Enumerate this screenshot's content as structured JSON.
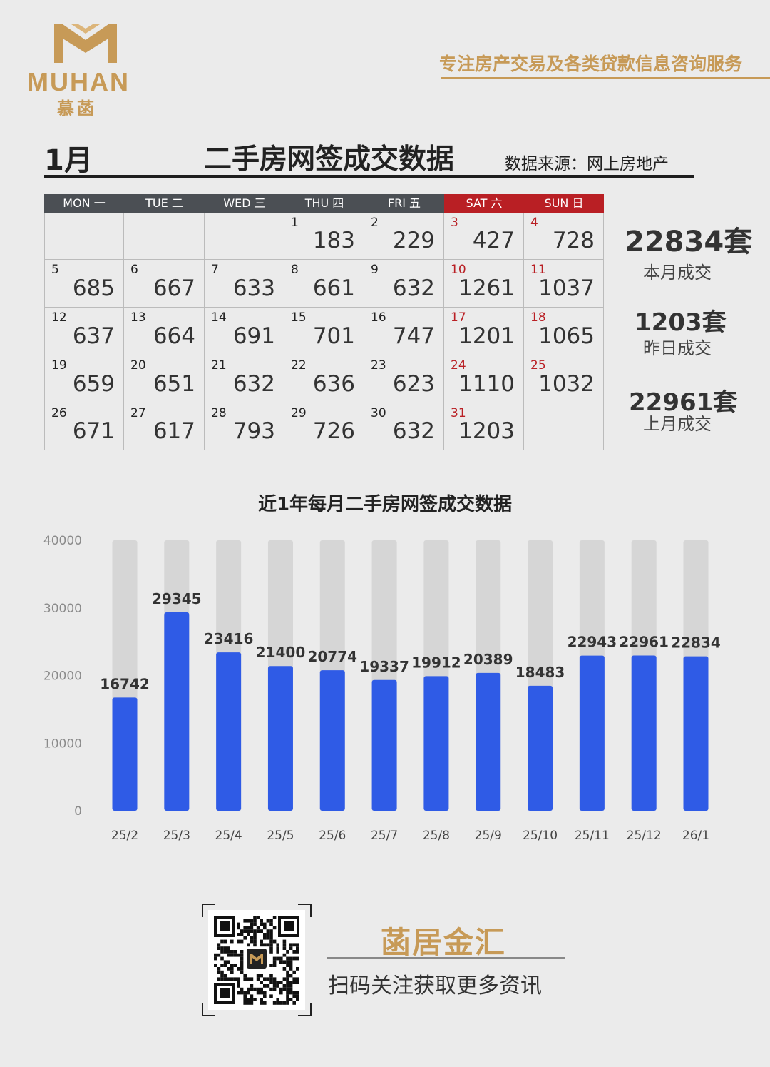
{
  "brand": {
    "logo_text": "MUHAN",
    "logo_cn": "慕菡",
    "slogan": "专注房产交易及各类贷款信息咨询服务"
  },
  "header": {
    "month": "1月",
    "title": "二手房网签成交数据",
    "source": "数据来源：网上房地产"
  },
  "calendar": {
    "weekdays": [
      "MON 一",
      "TUE 二",
      "WED 三",
      "THU 四",
      "FRI 五",
      "SAT 六",
      "SUN 日"
    ],
    "leading_blanks": 3,
    "days": [
      {
        "day": "1",
        "value": "183"
      },
      {
        "day": "2",
        "value": "229"
      },
      {
        "day": "3",
        "value": "427"
      },
      {
        "day": "4",
        "value": "728"
      },
      {
        "day": "5",
        "value": "685"
      },
      {
        "day": "6",
        "value": "667"
      },
      {
        "day": "7",
        "value": "633"
      },
      {
        "day": "8",
        "value": "661"
      },
      {
        "day": "9",
        "value": "632"
      },
      {
        "day": "10",
        "value": "1261"
      },
      {
        "day": "11",
        "value": "1037"
      },
      {
        "day": "12",
        "value": "637"
      },
      {
        "day": "13",
        "value": "664"
      },
      {
        "day": "14",
        "value": "691"
      },
      {
        "day": "15",
        "value": "701"
      },
      {
        "day": "16",
        "value": "747"
      },
      {
        "day": "17",
        "value": "1201"
      },
      {
        "day": "18",
        "value": "1065"
      },
      {
        "day": "19",
        "value": "659"
      },
      {
        "day": "20",
        "value": "651"
      },
      {
        "day": "21",
        "value": "632"
      },
      {
        "day": "22",
        "value": "636"
      },
      {
        "day": "23",
        "value": "623"
      },
      {
        "day": "24",
        "value": "1110"
      },
      {
        "day": "25",
        "value": "1032"
      },
      {
        "day": "26",
        "value": "671"
      },
      {
        "day": "27",
        "value": "617"
      },
      {
        "day": "28",
        "value": "793"
      },
      {
        "day": "29",
        "value": "726"
      },
      {
        "day": "30",
        "value": "632"
      },
      {
        "day": "31",
        "value": "1203"
      }
    ]
  },
  "summary": {
    "this_month_value": "22834套",
    "this_month_label": "本月成交",
    "yesterday_value": "1203套",
    "yesterday_label": "昨日成交",
    "last_month_value": "22961套",
    "last_month_label": "上月成交"
  },
  "chart_data": {
    "type": "bar",
    "title": "近1年每月二手房网签成交数据",
    "categories": [
      "25/2",
      "25/3",
      "25/4",
      "25/5",
      "25/6",
      "25/7",
      "25/8",
      "25/9",
      "25/10",
      "25/11",
      "25/12",
      "26/1"
    ],
    "values": [
      16742,
      29345,
      23416,
      21400,
      20774,
      19337,
      19912,
      20389,
      18483,
      22943,
      22961,
      22834
    ],
    "yticks": [
      0,
      10000,
      20000,
      30000,
      40000
    ],
    "ylim": [
      0,
      40000
    ],
    "grid": false,
    "bar_color": "#2f5be6",
    "track_color": "#d6d6d6"
  },
  "footer": {
    "brand": "菡居金汇",
    "subtitle": "扫码关注获取更多资讯"
  }
}
